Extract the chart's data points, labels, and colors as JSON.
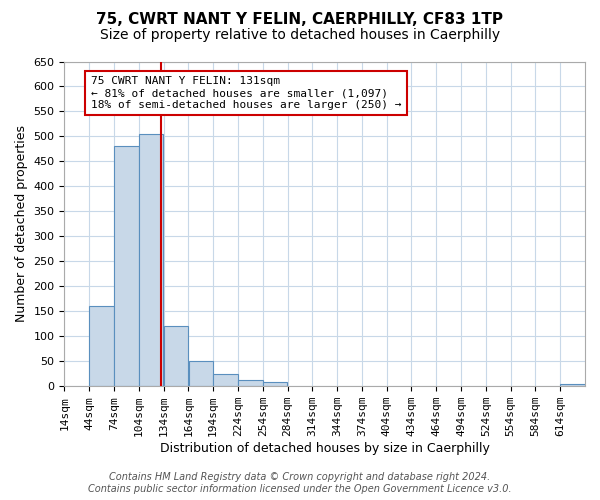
{
  "title": "75, CWRT NANT Y FELIN, CAERPHILLY, CF83 1TP",
  "subtitle": "Size of property relative to detached houses in Caerphilly",
  "xlabel": "Distribution of detached houses by size in Caerphilly",
  "ylabel": "Number of detached properties",
  "bar_starts": [
    14,
    44,
    74,
    104,
    134,
    164,
    194,
    224,
    254,
    284,
    314,
    344,
    374,
    404,
    434,
    464,
    494,
    524,
    554,
    584,
    614
  ],
  "bar_values": [
    0,
    160,
    480,
    505,
    120,
    50,
    25,
    12,
    8,
    0,
    0,
    0,
    0,
    0,
    0,
    0,
    0,
    0,
    0,
    0,
    5
  ],
  "bin_width": 30,
  "ylim": [
    0,
    650
  ],
  "yticks": [
    0,
    50,
    100,
    150,
    200,
    250,
    300,
    350,
    400,
    450,
    500,
    550,
    600,
    650
  ],
  "xtick_labels": [
    "14sqm",
    "44sqm",
    "74sqm",
    "104sqm",
    "134sqm",
    "164sqm",
    "194sqm",
    "224sqm",
    "254sqm",
    "284sqm",
    "314sqm",
    "344sqm",
    "374sqm",
    "404sqm",
    "434sqm",
    "464sqm",
    "494sqm",
    "524sqm",
    "554sqm",
    "584sqm",
    "614sqm"
  ],
  "property_line_x": 131,
  "bar_color": "#c8d8e8",
  "bar_edge_color": "#5a8fbe",
  "line_color": "#cc0000",
  "annotation_line1": "75 CWRT NANT Y FELIN: 131sqm",
  "annotation_line2": "← 81% of detached houses are smaller (1,097)",
  "annotation_line3": "18% of semi-detached houses are larger (250) →",
  "annotation_box_color": "#ffffff",
  "annotation_border_color": "#cc0000",
  "footer1": "Contains HM Land Registry data © Crown copyright and database right 2024.",
  "footer2": "Contains public sector information licensed under the Open Government Licence v3.0.",
  "bg_color": "#ffffff",
  "grid_color": "#c8d8e8",
  "title_fontsize": 11,
  "subtitle_fontsize": 10,
  "axis_label_fontsize": 9,
  "tick_fontsize": 8,
  "annotation_fontsize": 8,
  "footer_fontsize": 7
}
